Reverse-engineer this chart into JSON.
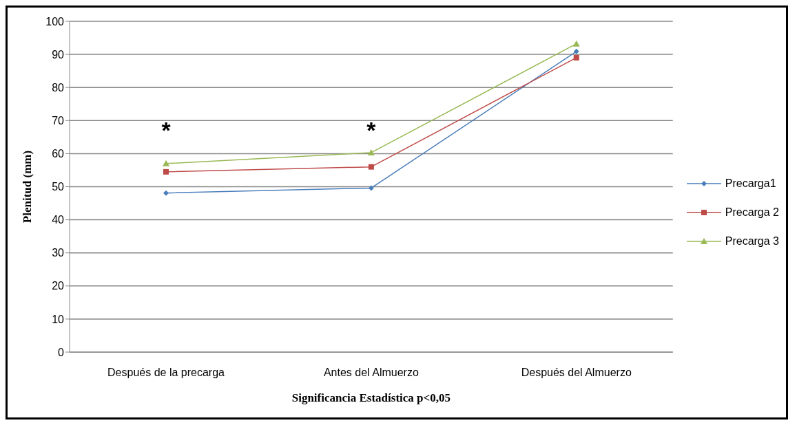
{
  "chart_data": {
    "type": "line",
    "xlabel": "Significancia Estadística p<0,05",
    "ylabel": "Plenitud (mm)",
    "categories": [
      "Después de la precarga",
      "Antes del Almuerzo",
      "Después del Almuerzo"
    ],
    "series": [
      {
        "name": "Precarga1",
        "color": "#4a7ebb",
        "values": [
          48.1,
          49.6,
          90.9
        ],
        "marker": "diamond"
      },
      {
        "name": "Precarga 2",
        "color": "#be4b48",
        "values": [
          54.5,
          56,
          89
        ],
        "marker": "square"
      },
      {
        "name": "Precarga 3",
        "color": "#98b954",
        "values": [
          57,
          60.3,
          93.2
        ],
        "marker": "triangle"
      }
    ],
    "ylim": [
      0,
      100
    ],
    "yticks": [
      0,
      10,
      20,
      30,
      40,
      50,
      60,
      70,
      80,
      90,
      100
    ],
    "grid": "y",
    "legend": "right",
    "line_style": "solid",
    "annotations": [
      "*",
      "*"
    ]
  }
}
